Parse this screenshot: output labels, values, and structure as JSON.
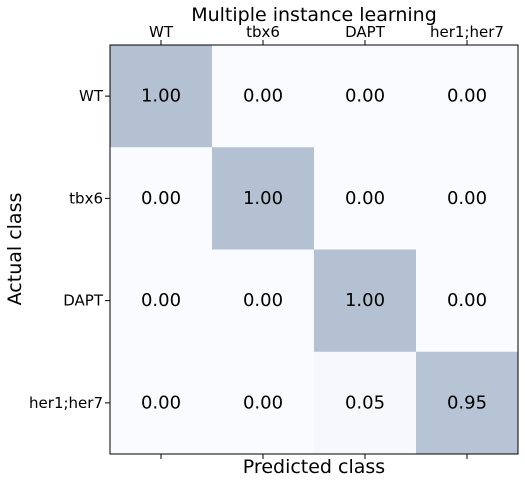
{
  "chart_data": {
    "type": "heatmap",
    "title": "Multiple instance learning",
    "xlabel": "Predicted class",
    "ylabel": "Actual class",
    "x_categories": [
      "WT",
      "tbx6",
      "DAPT",
      "her1;her7"
    ],
    "y_categories": [
      "WT",
      "tbx6",
      "DAPT",
      "her1;her7"
    ],
    "x_tick_position": "top",
    "values": [
      [
        1.0,
        0.0,
        0.0,
        0.0
      ],
      [
        0.0,
        1.0,
        0.0,
        0.0
      ],
      [
        0.0,
        0.0,
        1.0,
        0.0
      ],
      [
        0.0,
        0.0,
        0.05,
        0.95
      ]
    ],
    "cell_labels": [
      [
        "1.00",
        "0.00",
        "0.00",
        "0.00"
      ],
      [
        "0.00",
        "1.00",
        "0.00",
        "0.00"
      ],
      [
        "0.00",
        "0.00",
        "1.00",
        "0.00"
      ],
      [
        "0.00",
        "0.00",
        "0.05",
        "0.95"
      ]
    ],
    "value_range": [
      0,
      1
    ],
    "color_low": "#f9fbfe",
    "color_high": "#b4c1d3",
    "grid": false
  }
}
